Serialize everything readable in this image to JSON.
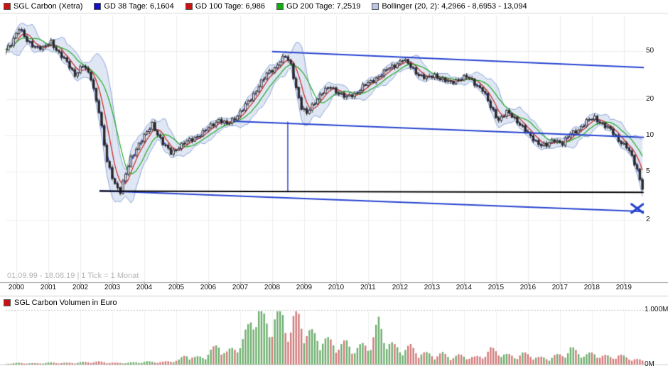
{
  "legend": {
    "items": [
      {
        "id": "sgl-carbon-xetra",
        "label": "SGL Carbon (Xetra)",
        "color": "#cc1111"
      },
      {
        "id": "gd-38-tage",
        "label": "GD 38 Tage: 6,1604",
        "color": "#1111cc"
      },
      {
        "id": "gd-100-tage",
        "label": "GD 100 Tage: 6,986",
        "color": "#cc1111"
      },
      {
        "id": "gd-200-tage",
        "label": "GD 200 Tage: 7,2519",
        "color": "#11aa11"
      },
      {
        "id": "bollinger-20-2",
        "label": "Bollinger (20, 2): 4,2966 - 8,6953 - 13,094",
        "color": "#b9c7e6"
      }
    ]
  },
  "main_chart": {
    "range_note": "01.09.99 - 18.08.19 | 1 Tick = 1 Monat"
  },
  "volume_chart": {
    "legend_label": "SGL Carbon Volumen in Euro",
    "legend_color": "#cc1111"
  },
  "chart_data": {
    "type": "candlestick",
    "title": "SGL Carbon (Xetra)",
    "scale": "log",
    "period": "01.09.99 - 18.08.19",
    "tick_interval": "1 Monat",
    "x_tick_labels": [
      "2000",
      "2001",
      "2002",
      "2003",
      "2004",
      "2005",
      "2006",
      "2007",
      "2008",
      "2009",
      "2010",
      "2011",
      "2012",
      "2013",
      "2014",
      "2015",
      "2016",
      "2017",
      "2018",
      "2019"
    ],
    "price_axis": {
      "ticks": [
        50,
        20,
        10,
        5,
        2
      ],
      "unit": "EUR"
    },
    "volume_axis": {
      "ticks": [
        {
          "label": "1.000M",
          "value": 1000
        },
        {
          "label": "0M",
          "value": 0
        }
      ],
      "max_meur": 1000
    },
    "indicators": {
      "gd38_tage": 6.1604,
      "gd100_tage": 6.986,
      "gd200_tage": 7.2519,
      "bollinger_20_2": {
        "lower": 4.2966,
        "middle": 8.6953,
        "upper": 13.094
      }
    },
    "price_anchors": {
      "t": [
        1999.667,
        1999.833,
        2000.083,
        2000.333,
        2000.583,
        2000.833,
        2001.083,
        2001.333,
        2001.583,
        2001.833,
        2002.083,
        2002.333,
        2002.583,
        2002.833,
        2003.083,
        2003.25,
        2003.583,
        2003.833,
        2004.083,
        2004.25,
        2004.583,
        2004.833,
        2005.083,
        2005.333,
        2005.583,
        2005.833,
        2006.083,
        2006.333,
        2006.583,
        2006.833,
        2007.083,
        2007.333,
        2007.583,
        2007.833,
        2008.083,
        2008.25,
        2008.417,
        2008.583,
        2008.75,
        2008.917,
        2009.083,
        2009.333,
        2009.583,
        2009.833,
        2010.083,
        2010.333,
        2010.583,
        2010.833,
        2011.083,
        2011.333,
        2011.583,
        2011.833,
        2012.083,
        2012.333,
        2012.583,
        2012.833,
        2013.083,
        2013.333,
        2013.583,
        2013.833,
        2014.083,
        2014.333,
        2014.583,
        2014.833,
        2015.083,
        2015.333,
        2015.583,
        2015.833,
        2016.083,
        2016.333,
        2016.583,
        2016.833,
        2017.083,
        2017.333,
        2017.583,
        2017.833,
        2018.083,
        2018.333,
        2018.583,
        2018.833,
        2019.083,
        2019.25,
        2019.417,
        2019.583
      ],
      "close": [
        50,
        58,
        78,
        60,
        55,
        52,
        60,
        48,
        40,
        32,
        38,
        30,
        16,
        6,
        4,
        3.4,
        6.5,
        8.5,
        10.5,
        12.5,
        8.5,
        7.2,
        8,
        8.8,
        9.6,
        10.5,
        12,
        13.5,
        12.2,
        14,
        16.5,
        20,
        26,
        32,
        36,
        42,
        45,
        38,
        25,
        17,
        15,
        19,
        23,
        25,
        22.5,
        20.5,
        22,
        25.5,
        27.5,
        31,
        35,
        38,
        43,
        37,
        32,
        29.5,
        31.5,
        29,
        27,
        29.5,
        30.5,
        27,
        24,
        17,
        13.5,
        15.5,
        13.8,
        11.8,
        9.6,
        8.6,
        8.2,
        9.2,
        8.6,
        10.2,
        11.2,
        13,
        14,
        12.4,
        11,
        9.2,
        8,
        6.6,
        5.2,
        3.7
      ]
    },
    "volume_anchors": {
      "t": [
        1999.667,
        2000.083,
        2000.583,
        2001.083,
        2001.583,
        2002.083,
        2002.583,
        2003.083,
        2003.583,
        2004.083,
        2004.583,
        2005.083,
        2005.333,
        2005.583,
        2005.833,
        2006.083,
        2006.333,
        2006.583,
        2006.833,
        2007.083,
        2007.25,
        2007.417,
        2007.583,
        2007.75,
        2007.917,
        2008.083,
        2008.25,
        2008.417,
        2008.583,
        2008.75,
        2008.917,
        2009.083,
        2009.333,
        2009.583,
        2009.833,
        2010.083,
        2010.333,
        2010.583,
        2010.833,
        2011.083,
        2011.333,
        2011.583,
        2011.833,
        2012.083,
        2012.333,
        2012.583,
        2012.833,
        2013.083,
        2013.333,
        2013.583,
        2013.833,
        2014.083,
        2014.333,
        2014.583,
        2014.833,
        2015.083,
        2015.333,
        2015.583,
        2015.833,
        2016.083,
        2016.333,
        2016.583,
        2016.833,
        2017.083,
        2017.333,
        2017.583,
        2017.833,
        2018.083,
        2018.333,
        2018.583,
        2018.833,
        2019.083,
        2019.333,
        2019.583
      ],
      "volume_meur": [
        15,
        25,
        20,
        30,
        25,
        35,
        45,
        25,
        30,
        45,
        40,
        70,
        160,
        110,
        120,
        220,
        300,
        200,
        250,
        400,
        560,
        820,
        900,
        700,
        600,
        760,
        880,
        650,
        560,
        820,
        700,
        520,
        460,
        400,
        360,
        300,
        340,
        240,
        300,
        330,
        660,
        380,
        280,
        240,
        280,
        190,
        170,
        150,
        170,
        120,
        140,
        130,
        110,
        140,
        240,
        200,
        150,
        130,
        170,
        150,
        110,
        100,
        140,
        150,
        260,
        180,
        160,
        170,
        140,
        120,
        150,
        110,
        90,
        60
      ]
    },
    "annotations": {
      "trendlines": [
        {
          "name": "upper-downtrend-line",
          "t1": 2008.0,
          "p1": 49.5,
          "t2": 2019.65,
          "p2": 36.5,
          "color": "#2743d0",
          "width": 2
        },
        {
          "name": "mid-downtrend-line",
          "t1": 2006.8,
          "p1": 13.1,
          "t2": 2019.65,
          "p2": 9.6,
          "color": "#2743d0",
          "width": 2
        },
        {
          "name": "lower-downtrend-line",
          "t1": 2002.6,
          "p1": 3.47,
          "t2": 2020.2,
          "p2": 2.3,
          "color": "#2743d0",
          "width": 2
        },
        {
          "name": "vertical-measure-line",
          "t1": 2008.49,
          "p1": 13.0,
          "t2": 2008.49,
          "p2": 3.44,
          "color": "#2743d0",
          "width": 1.5
        }
      ],
      "support_line": {
        "t1": 2002.6,
        "p1": 3.45,
        "t2": 2019.62,
        "p2": 3.36,
        "color": "#000000",
        "width": 2
      },
      "x_marker": {
        "t": 2019.42,
        "p": 2.47,
        "color": "#2743d0"
      }
    },
    "colors": {
      "candle_up_fill": "#ffffff",
      "candle_down_fill": "#222222",
      "candle_outline": "#333333",
      "volume_up": "#6fae6f",
      "volume_down": "#d27a7a",
      "bollinger": "#8ca5d7",
      "gd38": "#2020cc",
      "gd100": "#cc2020",
      "gd200": "#20aa20",
      "grid": "#ececec",
      "axis": "#999999"
    }
  }
}
